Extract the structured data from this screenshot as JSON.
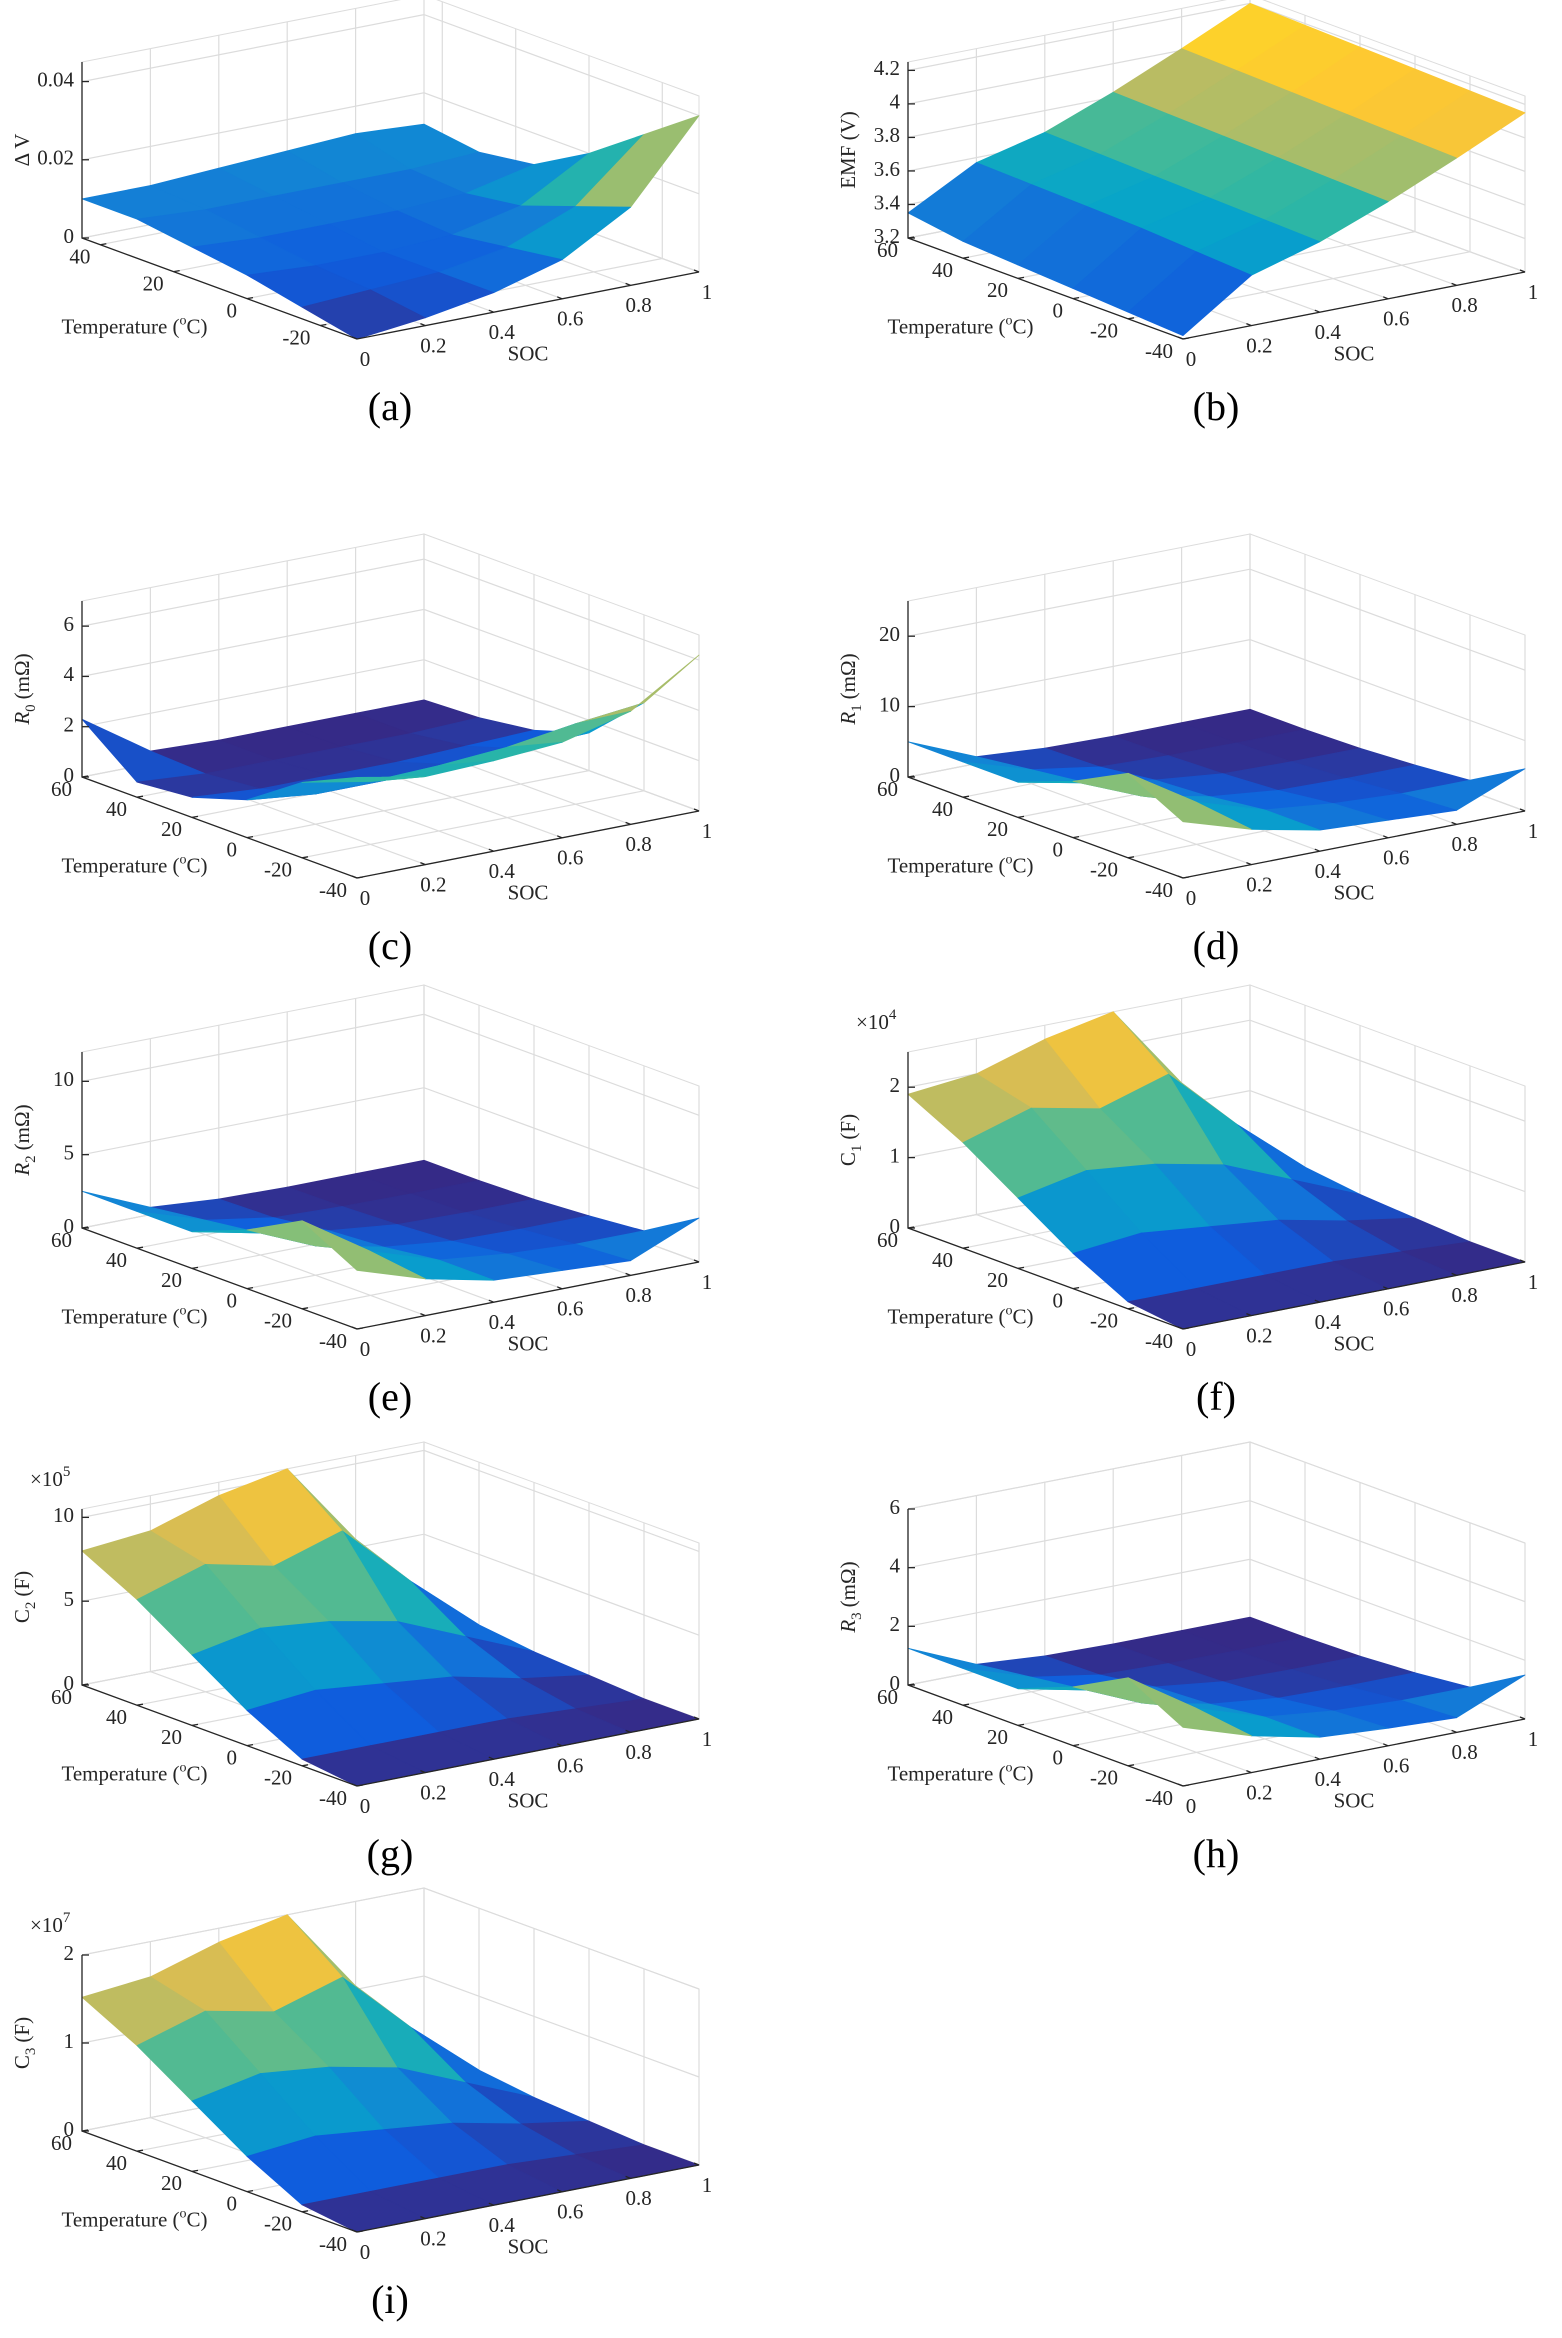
{
  "chart_data": [
    {
      "type": "surface",
      "label": "(a)",
      "xlabel": "SOC",
      "ylabel": {
        "main": "Temperature (",
        "sup": "o",
        "rest": "C)"
      },
      "zlabel": {
        "main": "Δ V"
      },
      "x": [
        0,
        0.2,
        0.4,
        0.6,
        0.8,
        1
      ],
      "y": [
        -30,
        -15,
        0,
        15,
        30,
        45
      ],
      "z": [
        [
          0,
          0.002,
          0.005,
          0.01,
          0.02,
          0.04
        ],
        [
          0.003,
          0.004,
          0.005,
          0.008,
          0.015,
          0.03
        ],
        [
          0.006,
          0.005,
          0.005,
          0.006,
          0.01,
          0.02
        ],
        [
          0.008,
          0.007,
          0.007,
          0.007,
          0.008,
          0.012
        ],
        [
          0.01,
          0.009,
          0.009,
          0.009,
          0.009,
          0.01
        ],
        [
          0.01,
          0.01,
          0.011,
          0.012,
          0.013,
          0.012
        ]
      ],
      "xlim": [
        0,
        1
      ],
      "ylim": [
        -30,
        45
      ],
      "zlim": [
        0,
        0.045
      ],
      "xticks": [
        0,
        0.2,
        0.4,
        0.6,
        0.8,
        1
      ],
      "yticks": [
        -20,
        0,
        20,
        40
      ],
      "zticks": [
        0,
        0.02,
        0.04
      ]
    },
    {
      "type": "surface",
      "label": "(b)",
      "xlabel": "SOC",
      "ylabel": {
        "main": "Temperature (",
        "sup": "o",
        "rest": "C)"
      },
      "zlabel": {
        "main": "EMF (V)"
      },
      "x": [
        0,
        0.2,
        0.4,
        0.6,
        0.8,
        1
      ],
      "y": [
        -40,
        -20,
        0,
        20,
        40,
        60
      ],
      "z": [
        [
          3.22,
          3.5,
          3.62,
          3.78,
          3.96,
          4.15
        ],
        [
          3.24,
          3.52,
          3.63,
          3.79,
          3.97,
          4.16
        ],
        [
          3.26,
          3.54,
          3.64,
          3.8,
          3.98,
          4.17
        ],
        [
          3.28,
          3.55,
          3.65,
          3.81,
          3.99,
          4.18
        ],
        [
          3.3,
          3.56,
          3.66,
          3.82,
          4.0,
          4.19
        ],
        [
          3.35,
          3.57,
          3.67,
          3.83,
          4.01,
          4.2
        ]
      ],
      "xlim": [
        0,
        1
      ],
      "ylim": [
        -40,
        60
      ],
      "zlim": [
        3.2,
        4.25
      ],
      "xticks": [
        0,
        0.2,
        0.4,
        0.6,
        0.8,
        1
      ],
      "yticks": [
        -40,
        -20,
        0,
        20,
        40,
        60
      ],
      "zticks": [
        3.2,
        3.4,
        3.6,
        3.8,
        4,
        4.2
      ]
    },
    {
      "type": "surface",
      "label": "(c)",
      "xlabel": "SOC",
      "ylabel": {
        "main": "Temperature (",
        "sup": "o",
        "rest": "C)"
      },
      "zlabel": {
        "main": "R",
        "sub": "0",
        "unit": "(mΩ)",
        "italic": true
      },
      "x": [
        0,
        0.2,
        0.4,
        0.6,
        0.8,
        1
      ],
      "y": [
        -40,
        -20,
        0,
        20,
        40,
        60
      ],
      "z": [
        [
          4,
          3.5,
          3.6,
          3.8,
          4.5,
          6.2
        ],
        [
          3,
          2.5,
          2.6,
          2.8,
          3.2,
          3.5
        ],
        [
          1.5,
          1.2,
          1.2,
          1.3,
          1.4,
          1.5
        ],
        [
          0.8,
          0.6,
          0.6,
          0.6,
          0.7,
          0.8
        ],
        [
          0.6,
          0.4,
          0.4,
          0.4,
          0.4,
          0.5
        ],
        [
          2.3,
          0.5,
          0.4,
          0.4,
          0.4,
          0.4
        ]
      ],
      "xlim": [
        0,
        1
      ],
      "ylim": [
        -40,
        60
      ],
      "zlim": [
        0,
        7
      ],
      "xticks": [
        0,
        0.2,
        0.4,
        0.6,
        0.8,
        1
      ],
      "yticks": [
        -40,
        -20,
        0,
        20,
        40,
        60
      ],
      "zticks": [
        0,
        2,
        4,
        6
      ]
    },
    {
      "type": "surface",
      "label": "(d)",
      "xlabel": "SOC",
      "ylabel": {
        "main": "Temperature (",
        "sup": "o",
        "rest": "C)"
      },
      "zlabel": {
        "main": "R",
        "sub": "1",
        "unit": "(mΩ)",
        "italic": true
      },
      "x": [
        0,
        0.2,
        0.4,
        0.6,
        0.8,
        1
      ],
      "y": [
        -40,
        -20,
        0,
        20,
        40,
        60
      ],
      "z": [
        [
          8,
          5,
          3,
          2.5,
          2,
          6
        ],
        [
          12,
          6,
          3,
          2,
          1.5,
          1.5
        ],
        [
          8,
          4,
          2,
          1,
          0.8,
          0.8
        ],
        [
          5,
          3,
          1.5,
          0.5,
          0.3,
          0.3
        ],
        [
          5,
          2,
          0.5,
          0.2,
          0.1,
          0.1
        ],
        [
          5,
          1,
          0.3,
          0.1,
          0.1,
          0.1
        ]
      ],
      "xlim": [
        0,
        1
      ],
      "ylim": [
        -40,
        60
      ],
      "zlim": [
        0,
        25
      ],
      "xticks": [
        0,
        0.2,
        0.4,
        0.6,
        0.8,
        1
      ],
      "yticks": [
        -40,
        -20,
        0,
        20,
        40,
        60
      ],
      "zticks": [
        0,
        10,
        20
      ]
    },
    {
      "type": "surface",
      "label": "(e)",
      "xlabel": "SOC",
      "ylabel": {
        "main": "Temperature (",
        "sup": "o",
        "rest": "C)"
      },
      "zlabel": {
        "main": "R",
        "sub": "2",
        "unit": "(mΩ)",
        "italic": true
      },
      "x": [
        0,
        0.2,
        0.4,
        0.6,
        0.8,
        1
      ],
      "y": [
        -40,
        -20,
        0,
        20,
        40,
        60
      ],
      "z": [
        [
          4,
          2.5,
          1.5,
          1.25,
          1,
          3
        ],
        [
          6,
          3,
          1.5,
          1,
          0.75,
          0.75
        ],
        [
          4,
          2,
          1,
          0.5,
          0.4,
          0.4
        ],
        [
          2.5,
          1.5,
          0.75,
          0.25,
          0.15,
          0.15
        ],
        [
          2.5,
          1,
          0.25,
          0.1,
          0.05,
          0.05
        ],
        [
          2.5,
          0.5,
          0.15,
          0.05,
          0.05,
          0.05
        ]
      ],
      "xlim": [
        0,
        1
      ],
      "ylim": [
        -40,
        60
      ],
      "zlim": [
        0,
        12
      ],
      "xticks": [
        0,
        0.2,
        0.4,
        0.6,
        0.8,
        1
      ],
      "yticks": [
        -40,
        -20,
        0,
        20,
        40,
        60
      ],
      "zticks": [
        0,
        5,
        10
      ]
    },
    {
      "type": "surface",
      "label": "(f)",
      "xlabel": "SOC",
      "ylabel": {
        "main": "Temperature (",
        "sup": "o",
        "rest": "C)"
      },
      "zlabel": {
        "main": "C",
        "sub": "1",
        "unit": "(F)"
      },
      "zmultiplier": {
        "base": "×10",
        "exp": "4"
      },
      "x": [
        0,
        0.2,
        0.4,
        0.6,
        0.8,
        1
      ],
      "y": [
        -40,
        -20,
        0,
        20,
        40,
        60
      ],
      "z": [
        [
          0,
          0,
          0,
          0,
          0,
          0
        ],
        [
          0.1,
          0.1,
          0.1,
          0.1,
          0.05,
          0
        ],
        [
          0.5,
          0.6,
          0.5,
          0.4,
          0.2,
          0.05
        ],
        [
          1.0,
          1.2,
          1.1,
          0.9,
          0.5,
          0.1
        ],
        [
          1.5,
          1.8,
          1.6,
          1.9,
          1.0,
          0.2
        ],
        [
          1.9,
          2.0,
          2.3,
          2.5,
          1.3,
          0.2
        ]
      ],
      "xlim": [
        0,
        1
      ],
      "ylim": [
        -40,
        60
      ],
      "zlim": [
        0,
        2.5
      ],
      "xticks": [
        0,
        0.2,
        0.4,
        0.6,
        0.8,
        1
      ],
      "yticks": [
        -40,
        -20,
        0,
        20,
        40,
        60
      ],
      "zticks": [
        0,
        1,
        2
      ]
    },
    {
      "type": "surface",
      "label": "(g)",
      "xlabel": "SOC",
      "ylabel": {
        "main": "Temperature (",
        "sup": "o",
        "rest": "C)"
      },
      "zlabel": {
        "main": "C",
        "sub": "2",
        "unit": "(F)"
      },
      "zmultiplier": {
        "base": "×10",
        "exp": "5"
      },
      "x": [
        0,
        0.2,
        0.4,
        0.6,
        0.8,
        1
      ],
      "y": [
        -40,
        -20,
        0,
        20,
        40,
        60
      ],
      "z": [
        [
          0,
          0,
          0,
          0,
          0,
          0
        ],
        [
          0.4,
          0.4,
          0.4,
          0.4,
          0.2,
          0
        ],
        [
          2.1,
          2.5,
          2.1,
          1.7,
          0.8,
          0.2
        ],
        [
          4.2,
          5,
          4.6,
          3.8,
          2.1,
          0.4
        ],
        [
          6.3,
          7.6,
          6.7,
          8,
          4.2,
          0.8
        ],
        [
          8,
          8.4,
          9.7,
          10.5,
          5.5,
          0.8
        ]
      ],
      "xlim": [
        0,
        1
      ],
      "ylim": [
        -40,
        60
      ],
      "zlim": [
        0,
        10.5
      ],
      "xticks": [
        0,
        0.2,
        0.4,
        0.6,
        0.8,
        1
      ],
      "yticks": [
        -40,
        -20,
        0,
        20,
        40,
        60
      ],
      "zticks": [
        0,
        5,
        10
      ]
    },
    {
      "type": "surface",
      "label": "(h)",
      "xlabel": "SOC",
      "ylabel": {
        "main": "Temperature (",
        "sup": "o",
        "rest": "C)"
      },
      "zlabel": {
        "main": "R",
        "sub": "3",
        "unit": "(mΩ)",
        "italic": true
      },
      "x": [
        0,
        0.2,
        0.4,
        0.6,
        0.8,
        1
      ],
      "y": [
        -40,
        -20,
        0,
        20,
        40,
        60
      ],
      "z": [
        [
          2,
          1.25,
          0.75,
          0.6,
          0.5,
          1.5
        ],
        [
          3,
          1.5,
          0.75,
          0.5,
          0.4,
          0.4
        ],
        [
          2,
          1,
          0.5,
          0.25,
          0.2,
          0.2
        ],
        [
          1.25,
          0.75,
          0.4,
          0.12,
          0.08,
          0.08
        ],
        [
          1.25,
          0.5,
          0.12,
          0.05,
          0.03,
          0.03
        ],
        [
          1.25,
          0.25,
          0.08,
          0.03,
          0.03,
          0.03
        ]
      ],
      "xlim": [
        0,
        1
      ],
      "ylim": [
        -40,
        60
      ],
      "zlim": [
        0,
        6
      ],
      "xticks": [
        0,
        0.2,
        0.4,
        0.6,
        0.8,
        1
      ],
      "yticks": [
        -40,
        -20,
        0,
        20,
        40,
        60
      ],
      "zticks": [
        0,
        2,
        4,
        6
      ]
    },
    {
      "type": "surface",
      "label": "(i)",
      "xlabel": "SOC",
      "ylabel": {
        "main": "Temperature (",
        "sup": "o",
        "rest": "C)"
      },
      "zlabel": {
        "main": "C",
        "sub": "3",
        "unit": "(F)"
      },
      "zmultiplier": {
        "base": "×10",
        "exp": "7"
      },
      "x": [
        0,
        0.2,
        0.4,
        0.6,
        0.8,
        1
      ],
      "y": [
        -40,
        -20,
        0,
        20,
        40,
        60
      ],
      "z": [
        [
          0,
          0,
          0,
          0,
          0,
          0
        ],
        [
          0.08,
          0.08,
          0.08,
          0.08,
          0.04,
          0
        ],
        [
          0.4,
          0.48,
          0.4,
          0.32,
          0.16,
          0.04
        ],
        [
          0.8,
          0.96,
          0.88,
          0.72,
          0.4,
          0.08
        ],
        [
          1.2,
          1.44,
          1.28,
          1.52,
          0.8,
          0.16
        ],
        [
          1.52,
          1.6,
          1.84,
          2,
          1.04,
          0.16
        ]
      ],
      "xlim": [
        0,
        1
      ],
      "ylim": [
        -40,
        60
      ],
      "zlim": [
        0,
        2
      ],
      "xticks": [
        0,
        0.2,
        0.4,
        0.6,
        0.8,
        1
      ],
      "yticks": [
        -40,
        -20,
        0,
        20,
        40,
        60
      ],
      "zticks": [
        0,
        1,
        2
      ]
    }
  ]
}
